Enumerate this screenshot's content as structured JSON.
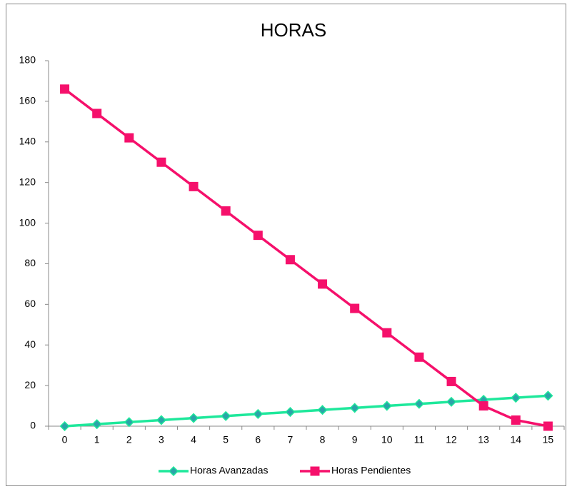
{
  "chart_data": {
    "type": "line",
    "title": "HORAS",
    "categories": [
      "0",
      "1",
      "2",
      "3",
      "4",
      "5",
      "6",
      "7",
      "8",
      "9",
      "10",
      "11",
      "12",
      "13",
      "14",
      "15"
    ],
    "series": [
      {
        "name": "Horas Avanzadas",
        "color": "#1ee89b",
        "marker": "diamond",
        "marker_color": "#2aa5a8",
        "values": [
          0,
          1,
          2,
          3,
          4,
          5,
          6,
          7,
          8,
          9,
          10,
          11,
          12,
          13,
          14,
          15
        ]
      },
      {
        "name": "Horas Pendientes",
        "color": "#f5106b",
        "marker": "square",
        "marker_color": "#f5106b",
        "values": [
          166,
          154,
          142,
          130,
          118,
          106,
          94,
          82,
          70,
          58,
          46,
          34,
          22,
          10,
          3,
          0
        ]
      }
    ],
    "ylim": [
      0,
      180
    ],
    "yticks": [
      0,
      20,
      40,
      60,
      80,
      100,
      120,
      140,
      160,
      180
    ],
    "grid": false,
    "legend": "bottom"
  }
}
